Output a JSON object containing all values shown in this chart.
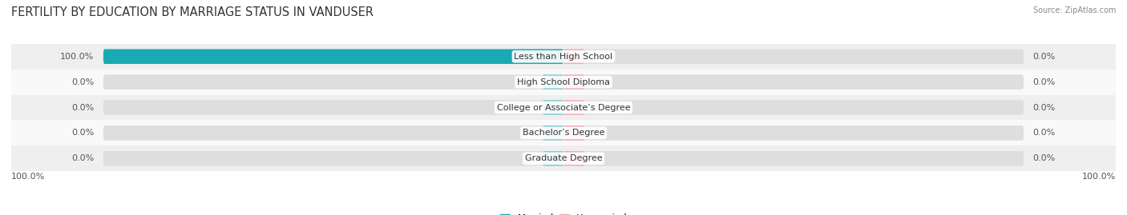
{
  "title": "FERTILITY BY EDUCATION BY MARRIAGE STATUS IN VANDUSER",
  "source": "Source: ZipAtlas.com",
  "categories": [
    "Less than High School",
    "High School Diploma",
    "College or Associate’s Degree",
    "Bachelor’s Degree",
    "Graduate Degree"
  ],
  "married_values": [
    100.0,
    0.0,
    0.0,
    0.0,
    0.0
  ],
  "unmarried_values": [
    0.0,
    0.0,
    0.0,
    0.0,
    0.0
  ],
  "married_color_dark": "#1AAAB3",
  "married_color_light": "#82CDD4",
  "unmarried_color": "#F5AABF",
  "track_color": "#DEDEDE",
  "row_bg_even": "#EFEFEF",
  "row_bg_odd": "#F9F9F9",
  "title_fontsize": 10.5,
  "label_fontsize": 8.0,
  "value_fontsize": 8.0,
  "legend_fontsize": 8.5,
  "bottom_left": "100.0%",
  "bottom_right": "100.0%"
}
